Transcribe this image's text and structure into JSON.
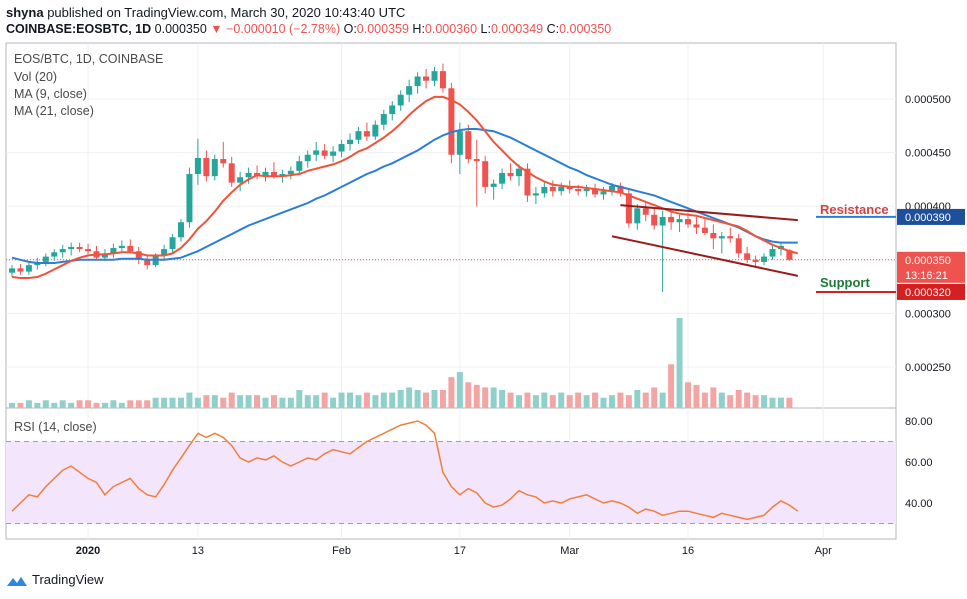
{
  "header": {
    "line1_user": "shyna",
    "line1_rest": "published on TradingView.com, March 30, 2020 10:43:40 UTC",
    "symbol": "COINBASE:EOSBTC, 1D",
    "last": "0.000350",
    "change": "−0.000010 (−2.78%)",
    "o_label": "O:",
    "o": "0.000359",
    "h_label": "H:",
    "h": "0.000360",
    "l_label": "L:",
    "l": "0.000349",
    "c_label": "C:",
    "c": "0.000350"
  },
  "legend": {
    "pair": "EOS/BTC, 1D, COINBASE",
    "vol": "Vol (20)",
    "ma9": "MA (9, close)",
    "ma21": "MA (21, close)",
    "rsi": "RSI (14, close)"
  },
  "annotations": {
    "resistance": "Resistance",
    "support": "Support"
  },
  "footer": {
    "brand": "TradingView"
  },
  "colors": {
    "up": "#26a69a",
    "down": "#ef5350",
    "ma9": "#f0523a",
    "ma21": "#2a7fd4",
    "vol_up": "#8fd1ca",
    "vol_down": "#f3a5a3",
    "rsi_line": "#f07f3c",
    "rsi_band": "#f3e5fb",
    "channel": "#9b1b1b",
    "resistance": "#d84040",
    "support": "#1f7a3a"
  },
  "chart_data": {
    "type": "candlestick",
    "title": "EOS/BTC, 1D, COINBASE",
    "price_axis_ticks": [
      "0.000500",
      "0.000450",
      "0.000400",
      "0.000350",
      "0.000300",
      "0.000250"
    ],
    "x_labels": [
      "2020",
      "13",
      "Feb",
      "17",
      "Mar",
      "16",
      "Apr"
    ],
    "price_tags": [
      {
        "label": "0.000390",
        "value": 0.00039,
        "color": "#1e4f9c"
      },
      {
        "label": "0.000350",
        "value": 0.00035,
        "color": "#ef5350"
      },
      {
        "label": "13:16:21",
        "value": 0.000336,
        "color": "#ef5350"
      },
      {
        "label": "0.000320",
        "value": 0.00032,
        "color": "#d32020"
      }
    ],
    "rsi_ticks": [
      "80.00",
      "60.00",
      "40.00"
    ],
    "rsi_band": [
      30,
      70
    ],
    "last_price": 0.00035,
    "resistance_level": 0.00039,
    "support_level": 0.00032,
    "channel_upper": [
      [
        0.000393,
        0.000401
      ],
      [
        0.000365,
        0.000387
      ]
    ],
    "channel_lower": [
      [
        0.000393,
        0.000372
      ],
      [
        0.000365,
        0.000335
      ]
    ],
    "candles": [
      [
        0.000338,
        0.000345,
        0.000334,
        0.000342
      ],
      [
        0.000342,
        0.000346,
        0.000336,
        0.000339
      ],
      [
        0.000339,
        0.000347,
        0.000336,
        0.000345
      ],
      [
        0.000345,
        0.000352,
        0.000341,
        0.000348
      ],
      [
        0.000348,
        0.000356,
        0.000344,
        0.000353
      ],
      [
        0.000353,
        0.00036,
        0.000349,
        0.000357
      ],
      [
        0.000357,
        0.000364,
        0.000352,
        0.00036
      ],
      [
        0.00036,
        0.000366,
        0.000354,
        0.000362
      ],
      [
        0.000362,
        0.000366,
        0.000357,
        0.00036
      ],
      [
        0.00036,
        0.000365,
        0.000355,
        0.000358
      ],
      [
        0.000358,
        0.000363,
        0.00035,
        0.000352
      ],
      [
        0.000352,
        0.00036,
        0.000349,
        0.000356
      ],
      [
        0.000356,
        0.000365,
        0.000352,
        0.000361
      ],
      [
        0.000361,
        0.000368,
        0.000357,
        0.000363
      ],
      [
        0.000363,
        0.000369,
        0.000356,
        0.000358
      ],
      [
        0.000358,
        0.000362,
        0.000346,
        0.00035
      ],
      [
        0.00035,
        0.000353,
        0.000341,
        0.000345
      ],
      [
        0.000345,
        0.000356,
        0.000343,
        0.000354
      ],
      [
        0.000354,
        0.000364,
        0.000349,
        0.00036
      ],
      [
        0.00036,
        0.000374,
        0.000356,
        0.000371
      ],
      [
        0.000371,
        0.000388,
        0.000367,
        0.000385
      ],
      [
        0.000385,
        0.000436,
        0.00038,
        0.00043
      ],
      [
        0.00043,
        0.000463,
        0.00042,
        0.000445
      ],
      [
        0.000445,
        0.000452,
        0.000423,
        0.000428
      ],
      [
        0.000428,
        0.000448,
        0.000424,
        0.000444
      ],
      [
        0.000444,
        0.00046,
        0.000436,
        0.00044
      ],
      [
        0.00044,
        0.000446,
        0.000418,
        0.000422
      ],
      [
        0.000422,
        0.000432,
        0.000414,
        0.000427
      ],
      [
        0.000427,
        0.000436,
        0.000421,
        0.000431
      ],
      [
        0.000431,
        0.000438,
        0.000425,
        0.000428
      ],
      [
        0.000428,
        0.000436,
        0.000423,
        0.000432
      ],
      [
        0.000432,
        0.000441,
        0.000426,
        0.000428
      ],
      [
        0.000428,
        0.000434,
        0.000422,
        0.00043
      ],
      [
        0.00043,
        0.000437,
        0.000425,
        0.000433
      ],
      [
        0.000433,
        0.000447,
        0.000429,
        0.000442
      ],
      [
        0.000442,
        0.000452,
        0.000436,
        0.000448
      ],
      [
        0.000448,
        0.00046,
        0.000442,
        0.000452
      ],
      [
        0.000452,
        0.000458,
        0.000444,
        0.000447
      ],
      [
        0.000447,
        0.000456,
        0.000441,
        0.000451
      ],
      [
        0.000451,
        0.000462,
        0.000446,
        0.000458
      ],
      [
        0.000458,
        0.000468,
        0.000452,
        0.000462
      ],
      [
        0.000462,
        0.000474,
        0.000458,
        0.00047
      ],
      [
        0.00047,
        0.000478,
        0.000461,
        0.000465
      ],
      [
        0.000465,
        0.00048,
        0.000462,
        0.000476
      ],
      [
        0.000476,
        0.00049,
        0.000471,
        0.000486
      ],
      [
        0.000486,
        0.000498,
        0.00048,
        0.000494
      ],
      [
        0.000494,
        0.000508,
        0.000489,
        0.000504
      ],
      [
        0.000504,
        0.000518,
        0.000497,
        0.000512
      ],
      [
        0.000512,
        0.000525,
        0.000505,
        0.000521
      ],
      [
        0.000521,
        0.000528,
        0.00051,
        0.000517
      ],
      [
        0.000517,
        0.00053,
        0.000512,
        0.000526
      ],
      [
        0.000526,
        0.000533,
        0.000506,
        0.00051
      ],
      [
        0.00051,
        0.000515,
        0.00044,
        0.000448
      ],
      [
        0.000448,
        0.000478,
        0.00043,
        0.00047
      ],
      [
        0.00047,
        0.000476,
        0.00044,
        0.000444
      ],
      [
        0.000444,
        0.000462,
        0.0004,
        0.000442
      ],
      [
        0.000442,
        0.000447,
        0.000412,
        0.000418
      ],
      [
        0.000418,
        0.000425,
        0.000406,
        0.000421
      ],
      [
        0.000421,
        0.000435,
        0.000416,
        0.000431
      ],
      [
        0.000431,
        0.00044,
        0.000424,
        0.000428
      ],
      [
        0.000428,
        0.000439,
        0.000419,
        0.000435
      ],
      [
        0.000435,
        0.00044,
        0.000404,
        0.00041
      ],
      [
        0.00041,
        0.000418,
        0.000402,
        0.000412
      ],
      [
        0.000412,
        0.000423,
        0.000408,
        0.000418
      ],
      [
        0.000418,
        0.000424,
        0.000409,
        0.000414
      ],
      [
        0.000414,
        0.000422,
        0.00041,
        0.000418
      ],
      [
        0.000418,
        0.000424,
        0.000412,
        0.000416
      ],
      [
        0.000416,
        0.00042,
        0.00041,
        0.000414
      ],
      [
        0.000414,
        0.00042,
        0.000409,
        0.000416
      ],
      [
        0.000416,
        0.000421,
        0.000408,
        0.000411
      ],
      [
        0.000411,
        0.000418,
        0.000406,
        0.000414
      ],
      [
        0.000414,
        0.000422,
        0.00041,
        0.000419
      ],
      [
        0.000419,
        0.000422,
        0.000409,
        0.000412
      ],
      [
        0.000412,
        0.000416,
        0.00038,
        0.000384
      ],
      [
        0.000384,
        0.000402,
        0.000378,
        0.000398
      ],
      [
        0.000398,
        0.000404,
        0.000386,
        0.000392
      ],
      [
        0.000392,
        0.000398,
        0.000378,
        0.000382
      ],
      [
        0.000382,
        0.000396,
        0.00032,
        0.00039
      ],
      [
        0.00039,
        0.000395,
        0.000378,
        0.000385
      ],
      [
        0.000385,
        0.000392,
        0.000376,
        0.000388
      ],
      [
        0.000388,
        0.000394,
        0.00038,
        0.000383
      ],
      [
        0.000383,
        0.00039,
        0.000374,
        0.00038
      ],
      [
        0.00038,
        0.000388,
        0.000373,
        0.000375
      ],
      [
        0.000375,
        0.000383,
        0.00036,
        0.00037
      ],
      [
        0.00037,
        0.000376,
        0.000356,
        0.000372
      ],
      [
        0.000372,
        0.00038,
        0.000366,
        0.00037
      ],
      [
        0.00037,
        0.000374,
        0.000352,
        0.000356
      ],
      [
        0.000356,
        0.000362,
        0.000347,
        0.00035
      ],
      [
        0.00035,
        0.000354,
        0.000344,
        0.000348
      ],
      [
        0.000348,
        0.000356,
        0.000345,
        0.000353
      ],
      [
        0.000353,
        0.000363,
        0.00035,
        0.00036
      ],
      [
        0.00036,
        0.000366,
        0.000354,
        0.000363
      ],
      [
        0.000359,
        0.00036,
        0.000349,
        0.00035
      ]
    ],
    "ma9": [
      0.000334,
      0.000333,
      0.000333,
      0.000334,
      0.000337,
      0.000341,
      0.000345,
      0.000349,
      0.000352,
      0.000354,
      0.000355,
      0.000355,
      0.000356,
      0.000357,
      0.000357,
      0.000356,
      0.000354,
      0.000354,
      0.000354,
      0.000356,
      0.000361,
      0.000369,
      0.000379,
      0.000386,
      0.000395,
      0.000405,
      0.000413,
      0.00042,
      0.000425,
      0.000429,
      0.000428,
      0.000428,
      0.000428,
      0.000429,
      0.00043,
      0.000433,
      0.000435,
      0.000437,
      0.000439,
      0.000442,
      0.000446,
      0.000451,
      0.000454,
      0.000459,
      0.000464,
      0.00047,
      0.000477,
      0.000485,
      0.000492,
      0.000498,
      0.000502,
      0.000502,
      0.000499,
      0.000495,
      0.000488,
      0.00048,
      0.00047,
      0.00046,
      0.000452,
      0.000444,
      0.000437,
      0.000432,
      0.000427,
      0.000423,
      0.00042,
      0.000419,
      0.000418,
      0.000418,
      0.000417,
      0.000416,
      0.000415,
      0.000414,
      0.000413,
      0.00041,
      0.000407,
      0.000404,
      0.000401,
      0.000398,
      0.000395,
      0.000393,
      0.000392,
      0.000391,
      0.000389,
      0.000387,
      0.000385,
      0.000383,
      0.000381,
      0.000377,
      0.000372,
      0.000368,
      0.000364,
      0.000361,
      0.000358,
      0.000356
    ],
    "ma21": [
      0.000352,
      0.00035,
      0.000348,
      0.000347,
      0.000347,
      0.000347,
      0.000348,
      0.000349,
      0.00035,
      0.00035,
      0.00035,
      0.00035,
      0.00035,
      0.000351,
      0.000351,
      0.000351,
      0.00035,
      0.00035,
      0.00035,
      0.000351,
      0.000352,
      0.000355,
      0.000358,
      0.000362,
      0.000366,
      0.00037,
      0.000374,
      0.000378,
      0.000382,
      0.000385,
      0.000388,
      0.000391,
      0.000394,
      0.000397,
      0.0004,
      0.000403,
      0.000407,
      0.00041,
      0.000414,
      0.000418,
      0.000422,
      0.000426,
      0.00043,
      0.000433,
      0.000437,
      0.00044,
      0.000444,
      0.000448,
      0.000452,
      0.000457,
      0.000462,
      0.000466,
      0.000469,
      0.000471,
      0.000472,
      0.000472,
      0.000471,
      0.00047,
      0.000467,
      0.000464,
      0.00046,
      0.000456,
      0.000452,
      0.000448,
      0.000444,
      0.00044,
      0.000436,
      0.000433,
      0.000429,
      0.000426,
      0.000423,
      0.00042,
      0.000418,
      0.000416,
      0.000414,
      0.000412,
      0.00041,
      0.000407,
      0.000404,
      0.000401,
      0.000398,
      0.000395,
      0.000392,
      0.000389,
      0.000386,
      0.000383,
      0.00038,
      0.000376,
      0.000372,
      0.000369,
      0.000367,
      0.000366,
      0.000366,
      0.000366
    ],
    "volume": [
      2,
      2,
      3,
      2,
      3,
      2,
      3,
      2,
      3,
      3,
      2,
      2,
      3,
      2,
      3,
      3,
      3,
      4,
      4,
      4,
      4,
      6,
      4,
      5,
      5,
      4,
      6,
      5,
      5,
      5,
      4,
      5,
      4,
      4,
      7,
      5,
      5,
      6,
      4,
      6,
      6,
      5,
      6,
      5,
      6,
      6,
      7,
      8,
      7,
      6,
      7,
      7,
      12,
      14,
      10,
      9,
      8,
      8,
      7,
      6,
      5,
      6,
      5,
      6,
      5,
      6,
      5,
      6,
      5,
      6,
      4,
      5,
      6,
      5,
      7,
      6,
      8,
      6,
      17,
      35,
      10,
      9,
      6,
      8,
      6,
      5,
      7,
      6,
      5,
      5,
      4,
      4,
      4,
      3
    ],
    "rsi": [
      36,
      40,
      44,
      43,
      48,
      52,
      56,
      58,
      55,
      52,
      50,
      44,
      48,
      50,
      52,
      47,
      44,
      43,
      49,
      56,
      62,
      68,
      74,
      72,
      74,
      72,
      68,
      62,
      60,
      62,
      61,
      63,
      60,
      58,
      60,
      62,
      61,
      64,
      66,
      65,
      64,
      67,
      70,
      72,
      74,
      76,
      78,
      79,
      80,
      78,
      74,
      55,
      48,
      44,
      47,
      45,
      40,
      38,
      39,
      42,
      46,
      44,
      43,
      40,
      41,
      40,
      42,
      43,
      44,
      42,
      40,
      41,
      40,
      38,
      35,
      37,
      36,
      34,
      35,
      36,
      36,
      35,
      34,
      33,
      35,
      34,
      33,
      32,
      33,
      34,
      38,
      41,
      39,
      36
    ],
    "rsi_markers": [
      30,
      70
    ],
    "candles_note": "each candle is [open, high, low, close]"
  }
}
